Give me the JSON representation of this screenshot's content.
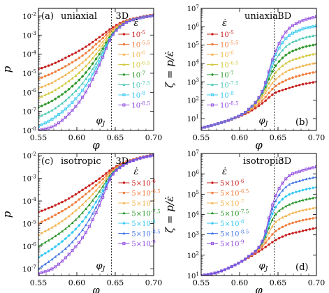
{
  "colors": [
    "#c81e1e",
    "#f07d3c",
    "#f4b450",
    "#d2c83c",
    "#2a9628",
    "#4ac8b4",
    "#32c8f0",
    "#4678e6",
    "#8c46dc"
  ],
  "chart_data": [
    {
      "type": "line",
      "panel_label": "(a)",
      "mode_label": "uniaxial",
      "dim_label": "3D",
      "ylabel": "p",
      "xlabel": "φ",
      "phiJ_label": "φ",
      "phiJ_sub": "J",
      "phiJ": 0.645,
      "xlim": [
        0.55,
        0.7
      ],
      "ylim_log10": [
        -8,
        -1.6
      ],
      "yscale": "log",
      "xticks": [
        "0.55",
        "0.60",
        "0.65",
        "0.70"
      ],
      "yticks": [
        {
          "b": "10",
          "e": "-8"
        },
        {
          "b": "10",
          "e": "-7"
        },
        {
          "b": "10",
          "e": "-6"
        },
        {
          "b": "10",
          "e": "-5"
        },
        {
          "b": "10",
          "e": "-4"
        },
        {
          "b": "10",
          "e": "-3"
        },
        {
          "b": "10",
          "e": "-2"
        }
      ],
      "legend_title": "ε̇",
      "legend": [
        {
          "b": "10",
          "e": "-5"
        },
        {
          "b": "10",
          "e": "-5.5"
        },
        {
          "b": "10",
          "e": "-6"
        },
        {
          "b": "10",
          "e": "-6.5"
        },
        {
          "b": "10",
          "e": "-7"
        },
        {
          "b": "10",
          "e": "-7.5"
        },
        {
          "b": "10",
          "e": "-8"
        },
        {
          "b": "10",
          "e": "-8.5"
        }
      ],
      "series": [
        {
          "x": [
            0.55,
            0.57,
            0.59,
            0.61,
            0.63,
            0.645,
            0.66,
            0.68,
            0.7
          ],
          "y": [
            1.6e-05,
            3.2e-05,
            8e-05,
            0.00022,
            0.0008,
            0.0023,
            0.005,
            0.0085,
            0.012
          ]
        },
        {
          "x": [
            0.55,
            0.57,
            0.59,
            0.61,
            0.63,
            0.645,
            0.66,
            0.68,
            0.7
          ],
          "y": [
            5e-06,
            1.1e-05,
            3e-05,
            0.0001,
            0.0005,
            0.0018,
            0.0045,
            0.0082,
            0.0115
          ]
        },
        {
          "x": [
            0.55,
            0.57,
            0.59,
            0.61,
            0.63,
            0.645,
            0.66,
            0.68,
            0.7
          ],
          "y": [
            1.6e-06,
            3.6e-06,
            1.1e-05,
            4.5e-05,
            0.0003,
            0.00145,
            0.0042,
            0.008,
            0.0112
          ]
        },
        {
          "x": [
            0.55,
            0.57,
            0.59,
            0.61,
            0.63,
            0.645,
            0.66,
            0.68,
            0.7
          ],
          "y": [
            5e-07,
            1.2e-06,
            4e-06,
            2e-05,
            0.00018,
            0.0012,
            0.004,
            0.0078,
            0.011
          ]
        },
        {
          "x": [
            0.55,
            0.57,
            0.59,
            0.61,
            0.63,
            0.645,
            0.66,
            0.68,
            0.7
          ],
          "y": [
            1.6e-07,
            4e-07,
            1.5e-06,
            9e-06,
            0.00011,
            0.001,
            0.0038,
            0.0077,
            0.0108
          ]
        },
        {
          "x": [
            0.55,
            0.57,
            0.59,
            0.61,
            0.63,
            0.645,
            0.66,
            0.68,
            0.7
          ],
          "y": [
            5e-08,
            1.3e-07,
            5.5e-07,
            4e-06,
            7e-05,
            0.0009,
            0.0037,
            0.0076,
            0.0107
          ]
        },
        {
          "x": [
            0.55,
            0.57,
            0.59,
            0.61,
            0.63,
            0.645,
            0.66,
            0.68,
            0.7
          ],
          "y": [
            1.6e-08,
            4.5e-08,
            2e-07,
            1.8e-06,
            4.5e-05,
            0.00083,
            0.0036,
            0.0075,
            0.0106
          ]
        },
        {
          "x": [
            0.55,
            0.57,
            0.59,
            0.61,
            0.63,
            0.645,
            0.66,
            0.68,
            0.7
          ],
          "y": [
            1e-08,
            1.7e-08,
            7.5e-08,
            8e-07,
            3e-05,
            0.00078,
            0.00355,
            0.00745,
            0.0105
          ]
        }
      ]
    },
    {
      "type": "line",
      "panel_label": "(b)",
      "mode_label": "uniaxial",
      "dim_label": "3D",
      "ylabel": "ζ = p/ε̇",
      "xlabel": "φ",
      "phiJ_label": "φ",
      "phiJ_sub": "J",
      "phiJ": 0.645,
      "xlim": [
        0.55,
        0.7
      ],
      "ylim_log10": [
        0.35,
        7
      ],
      "yscale": "log",
      "xticks": [
        "0.55",
        "0.60",
        "0.65",
        "0.70"
      ],
      "yticks": [
        {
          "b": "10",
          "e": "1"
        },
        {
          "b": "10",
          "e": "2"
        },
        {
          "b": "10",
          "e": "3"
        },
        {
          "b": "10",
          "e": "4"
        },
        {
          "b": "10",
          "e": "5"
        },
        {
          "b": "10",
          "e": "6"
        },
        {
          "b": "10",
          "e": "7"
        }
      ],
      "legend_title": "ε̇",
      "legend": [
        {
          "b": "10",
          "e": "-5"
        },
        {
          "b": "10",
          "e": "-5.5"
        },
        {
          "b": "10",
          "e": "-6"
        },
        {
          "b": "10",
          "e": "-6.5"
        },
        {
          "b": "10",
          "e": "-7"
        },
        {
          "b": "10",
          "e": "-7.5"
        },
        {
          "b": "10",
          "e": "-8"
        },
        {
          "b": "10",
          "e": "-8.5"
        }
      ],
      "series": [
        {
          "x": [
            0.55,
            0.57,
            0.59,
            0.61,
            0.63,
            0.645,
            0.66,
            0.68,
            0.7
          ],
          "y": [
            3,
            5,
            9,
            20,
            70,
            230,
            400,
            700,
            1000
          ]
        },
        {
          "x": [
            0.55,
            0.57,
            0.59,
            0.61,
            0.63,
            0.645,
            0.66,
            0.68,
            0.7
          ],
          "y": [
            3,
            5,
            9,
            22,
            100,
            500,
            1200,
            2300,
            3500
          ]
        },
        {
          "x": [
            0.55,
            0.57,
            0.59,
            0.61,
            0.63,
            0.645,
            0.66,
            0.68,
            0.7
          ],
          "y": [
            3,
            5,
            9,
            24,
            150,
            1100,
            3500,
            7000,
            11000
          ]
        },
        {
          "x": [
            0.55,
            0.57,
            0.59,
            0.61,
            0.63,
            0.645,
            0.66,
            0.68,
            0.7
          ],
          "y": [
            3,
            5,
            9.5,
            25,
            200,
            2500,
            10000,
            22000,
            35000
          ]
        },
        {
          "x": [
            0.55,
            0.57,
            0.59,
            0.61,
            0.63,
            0.645,
            0.66,
            0.68,
            0.7
          ],
          "y": [
            3,
            5,
            9.5,
            26,
            260,
            5500,
            28000,
            70000,
            110000
          ]
        },
        {
          "x": [
            0.55,
            0.57,
            0.59,
            0.61,
            0.63,
            0.645,
            0.66,
            0.68,
            0.7
          ],
          "y": [
            3,
            5,
            9.5,
            26,
            300,
            11000,
            80000,
            220000,
            350000
          ]
        },
        {
          "x": [
            0.55,
            0.57,
            0.59,
            0.61,
            0.63,
            0.645,
            0.66,
            0.68,
            0.7
          ],
          "y": [
            3,
            5,
            9.5,
            27,
            320,
            20000,
            220000,
            700000,
            1100000
          ]
        },
        {
          "x": [
            0.55,
            0.57,
            0.59,
            0.61,
            0.63,
            0.645,
            0.66,
            0.68,
            0.7
          ],
          "y": [
            3,
            5,
            9.5,
            27,
            340,
            30000,
            500000,
            2000000,
            3500000
          ]
        }
      ]
    },
    {
      "type": "line",
      "panel_label": "(c)",
      "mode_label": "isotropic",
      "dim_label": "3D",
      "ylabel": "p",
      "xlabel": "φ",
      "phiJ_label": "φ",
      "phiJ_sub": "J",
      "phiJ": 0.645,
      "xlim": [
        0.55,
        0.7
      ],
      "ylim_log10": [
        -7.3,
        -1.9
      ],
      "yscale": "log",
      "xticks": [
        "0.55",
        "0.60",
        "0.65",
        "0.70"
      ],
      "yticks": [
        {
          "b": "10",
          "e": "-7"
        },
        {
          "b": "10",
          "e": "-6"
        },
        {
          "b": "10",
          "e": "-5"
        },
        {
          "b": "10",
          "e": "-4"
        },
        {
          "b": "10",
          "e": "-3"
        },
        {
          "b": "10",
          "e": "-2"
        }
      ],
      "legend_title": "ε̇",
      "legend": [
        {
          "m": "5",
          "b": "10",
          "e": "-6"
        },
        {
          "m": "5",
          "b": "10",
          "e": "-6.5"
        },
        {
          "m": "5",
          "b": "10",
          "e": "-7"
        },
        {
          "m": "5",
          "b": "10",
          "e": "-7.5"
        },
        {
          "m": "5",
          "b": "10",
          "e": "-8"
        },
        {
          "m": "5",
          "b": "10",
          "e": "-8.5"
        },
        {
          "m": "5",
          "b": "10",
          "e": "-9"
        }
      ],
      "series": [
        {
          "x": [
            0.55,
            0.57,
            0.59,
            0.61,
            0.63,
            0.645,
            0.66,
            0.68,
            0.7
          ],
          "y": [
            3.2e-05,
            6e-05,
            0.00013,
            0.00035,
            0.001,
            0.0025,
            0.0048,
            0.008,
            0.0115
          ]
        },
        {
          "x": [
            0.55,
            0.57,
            0.59,
            0.61,
            0.63,
            0.645,
            0.66,
            0.68,
            0.7
          ],
          "y": [
            1e-05,
            2.2e-05,
            5.5e-05,
            0.00018,
            0.0007,
            0.0021,
            0.0045,
            0.0078,
            0.0112
          ]
        },
        {
          "x": [
            0.55,
            0.57,
            0.59,
            0.61,
            0.63,
            0.645,
            0.66,
            0.68,
            0.7
          ],
          "y": [
            3.2e-06,
            7.5e-06,
            2.2e-05,
            8.5e-05,
            0.00045,
            0.0018,
            0.0042,
            0.0076,
            0.011
          ]
        },
        {
          "x": [
            0.55,
            0.57,
            0.59,
            0.61,
            0.63,
            0.645,
            0.66,
            0.68,
            0.7
          ],
          "y": [
            1e-06,
            2.5e-06,
            8e-06,
            3.8e-05,
            0.00028,
            0.0016,
            0.004,
            0.0075,
            0.0108
          ]
        },
        {
          "x": [
            0.55,
            0.57,
            0.59,
            0.61,
            0.63,
            0.645,
            0.66,
            0.68,
            0.7
          ],
          "y": [
            3.2e-07,
            8.5e-07,
            3e-06,
            1.6e-05,
            0.00017,
            0.0014,
            0.0039,
            0.0074,
            0.0107
          ]
        },
        {
          "x": [
            0.55,
            0.57,
            0.59,
            0.61,
            0.63,
            0.645,
            0.66,
            0.68,
            0.7
          ],
          "y": [
            1e-07,
            3e-07,
            1.1e-06,
            7e-06,
            0.00011,
            0.0013,
            0.0038,
            0.00735,
            0.0106
          ]
        },
        {
          "x": [
            0.55,
            0.57,
            0.59,
            0.61,
            0.63,
            0.645,
            0.66,
            0.68,
            0.7
          ],
          "y": [
            6e-08,
            1.1e-07,
            4.5e-07,
            3.2e-06,
            7e-05,
            0.0012,
            0.0037,
            0.0073,
            0.0105
          ]
        }
      ]
    },
    {
      "type": "line",
      "panel_label": "(d)",
      "mode_label": "isotropic",
      "dim_label": "3D",
      "ylabel": "ζ = p/ε̇",
      "xlabel": "φ",
      "phiJ_label": "φ",
      "phiJ_sub": "J",
      "phiJ": 0.645,
      "xlim": [
        0.55,
        0.7
      ],
      "ylim_log10": [
        1,
        7
      ],
      "yscale": "log",
      "xticks": [
        "0.55",
        "0.60",
        "0.65",
        "0.70"
      ],
      "yticks": [
        {
          "b": "10",
          "e": "1"
        },
        {
          "b": "10",
          "e": "2"
        },
        {
          "b": "10",
          "e": "3"
        },
        {
          "b": "10",
          "e": "4"
        },
        {
          "b": "10",
          "e": "5"
        },
        {
          "b": "10",
          "e": "6"
        },
        {
          "b": "10",
          "e": "7"
        }
      ],
      "legend_title": "ε̇",
      "legend": [
        {
          "m": "5",
          "b": "10",
          "e": "-6"
        },
        {
          "m": "5",
          "b": "10",
          "e": "-6.5"
        },
        {
          "m": "5",
          "b": "10",
          "e": "-7"
        },
        {
          "m": "5",
          "b": "10",
          "e": "-7.5"
        },
        {
          "m": "5",
          "b": "10",
          "e": "-8"
        },
        {
          "m": "5",
          "b": "10",
          "e": "-8.5"
        },
        {
          "m": "5",
          "b": "10",
          "e": "-9"
        }
      ],
      "series": [
        {
          "x": [
            0.55,
            0.57,
            0.59,
            0.61,
            0.63,
            0.645,
            0.66,
            0.68,
            0.7
          ],
          "y": [
            10,
            14,
            28,
            70,
            200,
            500,
            950,
            1500,
            2200
          ]
        },
        {
          "x": [
            0.55,
            0.57,
            0.59,
            0.61,
            0.63,
            0.645,
            0.66,
            0.68,
            0.7
          ],
          "y": [
            10,
            14,
            28,
            72,
            280,
            1300,
            2900,
            5000,
            7000
          ]
        },
        {
          "x": [
            0.55,
            0.57,
            0.59,
            0.61,
            0.63,
            0.645,
            0.66,
            0.68,
            0.7
          ],
          "y": [
            10,
            14,
            28,
            75,
            350,
            3500,
            8500,
            15500,
            22000
          ]
        },
        {
          "x": [
            0.55,
            0.57,
            0.59,
            0.61,
            0.63,
            0.645,
            0.66,
            0.68,
            0.7
          ],
          "y": [
            10,
            14,
            28,
            76,
            420,
            8000,
            25000,
            48000,
            70000
          ]
        },
        {
          "x": [
            0.55,
            0.57,
            0.59,
            0.61,
            0.63,
            0.645,
            0.66,
            0.68,
            0.7
          ],
          "y": [
            10,
            14,
            28,
            77,
            480,
            17000,
            75000,
            150000,
            220000
          ]
        },
        {
          "x": [
            0.55,
            0.57,
            0.59,
            0.61,
            0.63,
            0.645,
            0.66,
            0.68,
            0.7
          ],
          "y": [
            10,
            14,
            28,
            78,
            520,
            32000,
            220000,
            470000,
            700000
          ]
        },
        {
          "x": [
            0.55,
            0.57,
            0.59,
            0.61,
            0.63,
            0.645,
            0.66,
            0.68,
            0.7
          ],
          "y": [
            10,
            14,
            28,
            78,
            550,
            55000,
            550000,
            1400000,
            2200000
          ]
        }
      ]
    }
  ]
}
